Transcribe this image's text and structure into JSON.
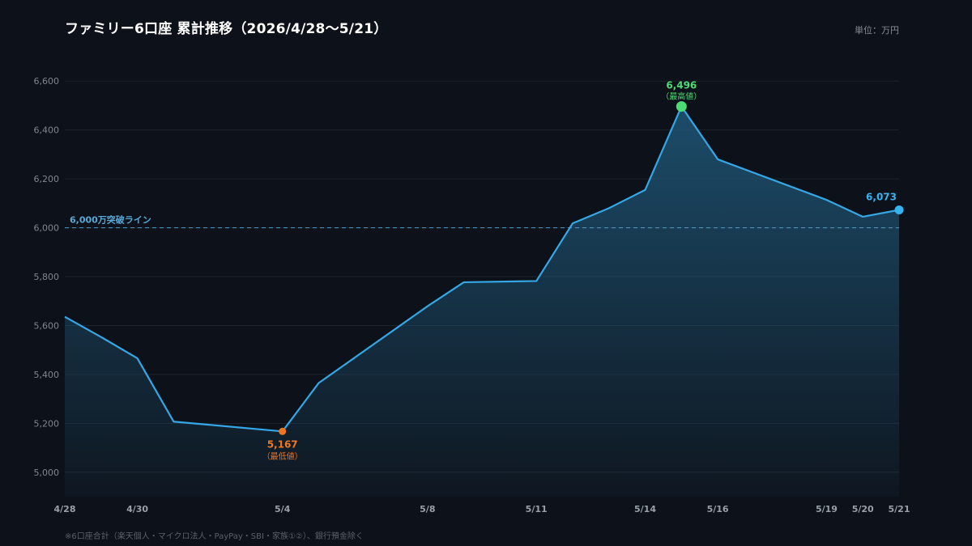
{
  "header": {
    "title": "ファミリー6口座 累計推移（2026/4/28〜5/21）",
    "unit": "単位：万円"
  },
  "footer": {
    "note": "※6口座合計（楽天個人・マイクロ法人・PayPay・SBI・家族①②）、銀行預金除く"
  },
  "colors": {
    "background": "#0d1119",
    "line": "#35a7e6",
    "area_top": "#1f5778",
    "gridline": "#1e232c",
    "reference": "#4a90b8",
    "min": "#f0761e",
    "max": "#4ddb74",
    "last": "#35b4f2"
  },
  "chart_data": {
    "type": "area",
    "title": "ファミリー6口座 累計推移（2026/4/28〜5/21）",
    "xlabel": "",
    "ylabel": "",
    "x": [
      "4/28",
      "4/29",
      "4/30",
      "5/1",
      "5/4",
      "5/5",
      "5/8",
      "5/9",
      "5/11",
      "5/12",
      "5/13",
      "5/14",
      "5/15",
      "5/16",
      "5/19",
      "5/20",
      "5/21"
    ],
    "x_ticks": [
      "4/28",
      "4/30",
      "5/4",
      "5/8",
      "5/11",
      "5/14",
      "5/16",
      "5/19",
      "5/20",
      "5/21"
    ],
    "series": [
      {
        "name": "",
        "values": [
          5636,
          5553,
          5466,
          5207,
          5167,
          5365,
          5679,
          5777,
          5782,
          6018,
          6080,
          6155,
          6496,
          6280,
          6114,
          6045,
          6073
        ]
      }
    ],
    "ylim": [
      4900,
      6700
    ],
    "yticks": [
      5000,
      5200,
      5400,
      5600,
      5800,
      6000,
      6200,
      6400,
      6600
    ],
    "ytick_labels": [
      "5,000",
      "5,200",
      "5,400",
      "5,600",
      "5,800",
      "6,000",
      "6,200",
      "6,400",
      "6,600"
    ],
    "grid": true,
    "reference_line": {
      "value": 6000,
      "label": "6,000万突破ライン"
    },
    "annotations": {
      "min": {
        "x": "5/4",
        "value": 5167,
        "label": "5,167",
        "note": "（最低値）"
      },
      "max": {
        "x": "5/15",
        "value": 6496,
        "label": "6,496",
        "note": "（最高値）"
      },
      "last": {
        "x": "5/21",
        "value": 6073,
        "label": "6,073"
      }
    }
  }
}
